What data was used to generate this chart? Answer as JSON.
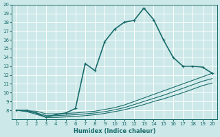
{
  "xlabel": "Humidex (Indice chaleur)",
  "ylabel": "",
  "bg_color": "#cce8e8",
  "grid_color": "#ffffff",
  "line_color": "#1a6b6b",
  "xlim": [
    -0.5,
    20.5
  ],
  "ylim": [
    7,
    20
  ],
  "xticks": [
    0,
    1,
    2,
    3,
    4,
    5,
    6,
    7,
    8,
    9,
    10,
    11,
    12,
    13,
    14,
    15,
    16,
    17,
    18,
    19,
    20
  ],
  "yticks": [
    8,
    9,
    10,
    11,
    12,
    13,
    14,
    15,
    16,
    17,
    18,
    19,
    20
  ],
  "lines": [
    {
      "x": [
        0,
        1,
        2,
        3,
        4,
        5,
        6,
        7,
        8,
        9,
        10,
        11,
        12,
        13,
        14,
        15,
        16,
        17,
        18,
        19,
        20
      ],
      "y": [
        8,
        8,
        7.7,
        7.2,
        7.5,
        7.7,
        8.2,
        13.3,
        12.5,
        15.8,
        17.2,
        18.0,
        18.2,
        19.6,
        18.3,
        16.0,
        14.0,
        13.0,
        13.0,
        12.9,
        12.2
      ],
      "lw": 1.2
    },
    {
      "x": [
        0,
        1,
        2,
        3,
        4,
        5,
        6,
        7,
        8,
        9,
        10,
        11,
        12,
        13,
        14,
        15,
        16,
        17,
        18,
        19,
        20
      ],
      "y": [
        8.0,
        7.95,
        7.9,
        7.6,
        7.6,
        7.65,
        7.7,
        7.8,
        7.9,
        8.1,
        8.3,
        8.6,
        9.0,
        9.4,
        9.8,
        10.2,
        10.6,
        11.0,
        11.4,
        11.8,
        12.2
      ],
      "lw": 0.8
    },
    {
      "x": [
        0,
        1,
        2,
        3,
        4,
        5,
        6,
        7,
        8,
        9,
        10,
        11,
        12,
        13,
        14,
        15,
        16,
        17,
        18,
        19,
        20
      ],
      "y": [
        8.0,
        7.9,
        7.7,
        7.4,
        7.4,
        7.45,
        7.5,
        7.6,
        7.7,
        7.85,
        8.05,
        8.3,
        8.65,
        9.0,
        9.35,
        9.7,
        10.1,
        10.5,
        10.9,
        11.3,
        11.6
      ],
      "lw": 0.8
    },
    {
      "x": [
        0,
        1,
        2,
        3,
        4,
        5,
        6,
        7,
        8,
        9,
        10,
        11,
        12,
        13,
        14,
        15,
        16,
        17,
        18,
        19,
        20
      ],
      "y": [
        8.0,
        7.85,
        7.55,
        7.2,
        7.2,
        7.25,
        7.3,
        7.4,
        7.5,
        7.65,
        7.85,
        8.05,
        8.35,
        8.65,
        9.0,
        9.3,
        9.65,
        10.0,
        10.4,
        10.8,
        11.1
      ],
      "lw": 0.8
    }
  ]
}
